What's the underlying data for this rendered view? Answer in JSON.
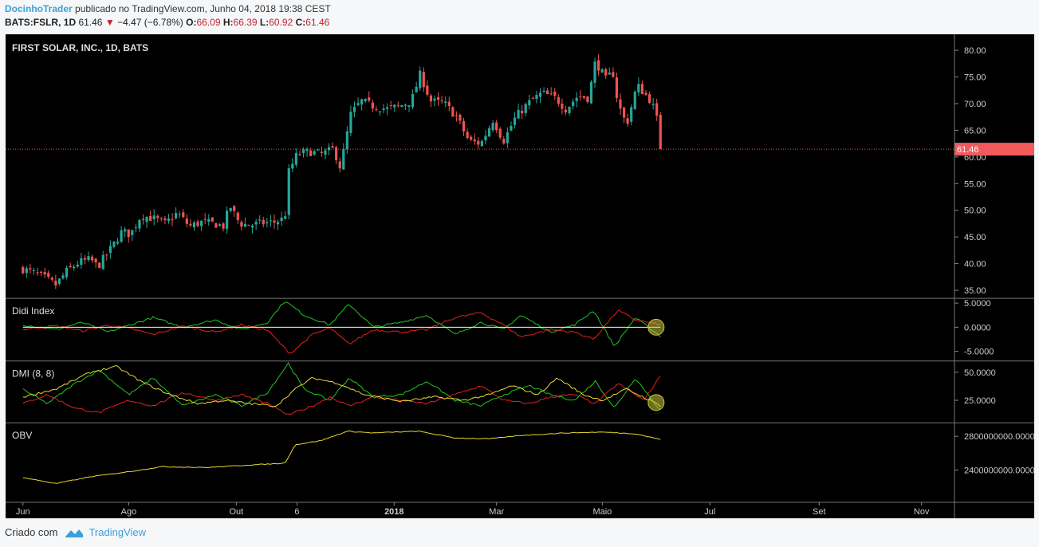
{
  "header": {
    "author": "DocinhoTrader",
    "published_text": "publicado no TradingView.com, Junho 04, 2018 19:38 CEST",
    "symbol": "BATS:FSLR, 1D",
    "last": "61.46",
    "change": "−4.47 (−6.78%)",
    "open_label": "O:",
    "open": "66.09",
    "high_label": "H:",
    "high": "66.39",
    "low_label": "L:",
    "low": "60.92",
    "close_label": "C:",
    "close": "61.46"
  },
  "footer": {
    "created_with": "Criado com",
    "brand": "TradingView"
  },
  "colors": {
    "up": "#26a69a",
    "down": "#ef5350",
    "green_line": "#22c422",
    "red_line": "#e02020",
    "yellow_line": "#e8d830",
    "white_line": "#ffffff",
    "price_tag": "#f2595a"
  },
  "chart_data": [
    {
      "type": "candlestick",
      "title": "FIRST SOLAR, INC., 1D, BATS",
      "ylim": [
        33.5,
        83
      ],
      "y_ticks": [
        "80.00",
        "75.00",
        "70.00",
        "65.00",
        "60.00",
        "55.00",
        "50.00",
        "45.00",
        "40.00",
        "35.00"
      ],
      "last_price_label": "61.46",
      "last_price": 61.46,
      "x_ticks": [
        "Jun",
        "Ago",
        "Out",
        "6",
        "2018",
        "Mar",
        "Maio",
        "Jul",
        "Set",
        "Nov"
      ],
      "x_ticks_bold": "2018",
      "x_anchors": [
        "2017-06-01",
        "2017-08-01",
        "2017-10-02",
        "2017-11-06",
        "2018-01-01",
        "2018-03-01",
        "2018-05-01",
        "2018-07-02",
        "2018-09-03",
        "2018-11-01"
      ],
      "close_points": [
        [
          "2017-06-01",
          39.0
        ],
        [
          "2017-06-07",
          38.3
        ],
        [
          "2017-06-14",
          37.2
        ],
        [
          "2017-06-20",
          36.0
        ],
        [
          "2017-06-26",
          38.5
        ],
        [
          "2017-07-03",
          40.2
        ],
        [
          "2017-07-10",
          40.8
        ],
        [
          "2017-07-14",
          39.4
        ],
        [
          "2017-07-21",
          42.5
        ],
        [
          "2017-07-28",
          46.0
        ],
        [
          "2017-08-02",
          45.5
        ],
        [
          "2017-08-08",
          49.0
        ],
        [
          "2017-08-15",
          48.5
        ],
        [
          "2017-08-22",
          47.5
        ],
        [
          "2017-08-29",
          49.5
        ],
        [
          "2017-09-05",
          47.0
        ],
        [
          "2017-09-12",
          47.8
        ],
        [
          "2017-09-19",
          47.5
        ],
        [
          "2017-09-25",
          47.0
        ],
        [
          "2017-09-28",
          51.0
        ],
        [
          "2017-10-04",
          47.5
        ],
        [
          "2017-10-10",
          47.2
        ],
        [
          "2017-10-17",
          47.6
        ],
        [
          "2017-10-24",
          47.8
        ],
        [
          "2017-10-30",
          48.5
        ],
        [
          "2017-11-01",
          57.0
        ],
        [
          "2017-11-06",
          60.5
        ],
        [
          "2017-11-13",
          61.0
        ],
        [
          "2017-11-20",
          60.5
        ],
        [
          "2017-11-27",
          61.5
        ],
        [
          "2017-12-01",
          58.0
        ],
        [
          "2017-12-07",
          68.0
        ],
        [
          "2017-12-13",
          70.5
        ],
        [
          "2017-12-20",
          69.5
        ],
        [
          "2017-12-28",
          69.0
        ],
        [
          "2018-01-04",
          69.5
        ],
        [
          "2018-01-11",
          70.5
        ],
        [
          "2018-01-16",
          75.5
        ],
        [
          "2018-01-22",
          70.5
        ],
        [
          "2018-01-30",
          70.0
        ],
        [
          "2018-02-06",
          67.5
        ],
        [
          "2018-02-13",
          63.0
        ],
        [
          "2018-02-20",
          62.5
        ],
        [
          "2018-02-27",
          67.0
        ],
        [
          "2018-03-05",
          63.0
        ],
        [
          "2018-03-12",
          67.5
        ],
        [
          "2018-03-19",
          70.0
        ],
        [
          "2018-03-27",
          72.0
        ],
        [
          "2018-04-04",
          71.0
        ],
        [
          "2018-04-10",
          69.0
        ],
        [
          "2018-04-17",
          71.5
        ],
        [
          "2018-04-23",
          71.0
        ],
        [
          "2018-04-27",
          78.0
        ],
        [
          "2018-05-03",
          74.5
        ],
        [
          "2018-05-07",
          76.0
        ],
        [
          "2018-05-10",
          70.0
        ],
        [
          "2018-05-15",
          66.0
        ],
        [
          "2018-05-21",
          73.5
        ],
        [
          "2018-05-29",
          70.5
        ],
        [
          "2018-06-01",
          68.0
        ],
        [
          "2018-06-04",
          61.46
        ]
      ],
      "daily_bar_days": 2.1,
      "panel_top_frac": 0.0,
      "panel_height_frac": 0.564
    },
    {
      "type": "line",
      "title": "Didi Index",
      "ylim": [
        -7,
        6
      ],
      "y_ticks": [
        "5.0000",
        "0.0000",
        "-5.0000"
      ],
      "y_tick_values": [
        5,
        0,
        -5
      ],
      "series": [
        {
          "color": "#22c422",
          "values_at": "see points",
          "points": [
            [
              "2017-06-01",
              0.5
            ],
            [
              "2017-06-20",
              -0.5
            ],
            [
              "2017-07-05",
              1.0
            ],
            [
              "2017-07-20",
              -1.0
            ],
            [
              "2017-08-02",
              0.5
            ],
            [
              "2017-08-15",
              2.0
            ],
            [
              "2017-09-01",
              0.0
            ],
            [
              "2017-09-20",
              1.5
            ],
            [
              "2017-10-05",
              -0.5
            ],
            [
              "2017-10-20",
              1.0
            ],
            [
              "2017-10-30",
              5.5
            ],
            [
              "2017-11-10",
              2.5
            ],
            [
              "2017-11-25",
              0.5
            ],
            [
              "2017-12-06",
              4.8
            ],
            [
              "2017-12-20",
              0.0
            ],
            [
              "2018-01-05",
              1.0
            ],
            [
              "2018-01-20",
              2.5
            ],
            [
              "2018-02-05",
              -1.5
            ],
            [
              "2018-02-20",
              1.0
            ],
            [
              "2018-03-05",
              -0.5
            ],
            [
              "2018-03-15",
              2.5
            ],
            [
              "2018-04-01",
              -1.0
            ],
            [
              "2018-04-15",
              0.5
            ],
            [
              "2018-04-26",
              3.5
            ],
            [
              "2018-05-08",
              -4.0
            ],
            [
              "2018-05-20",
              2.0
            ],
            [
              "2018-06-04",
              -2.0
            ]
          ]
        },
        {
          "color": "#e02020",
          "points": [
            [
              "2017-06-01",
              -0.5
            ],
            [
              "2017-06-20",
              0.3
            ],
            [
              "2017-07-05",
              -0.8
            ],
            [
              "2017-07-20",
              0.4
            ],
            [
              "2017-08-02",
              -0.3
            ],
            [
              "2017-08-15",
              -1.5
            ],
            [
              "2017-09-01",
              0.2
            ],
            [
              "2017-09-20",
              -1.0
            ],
            [
              "2017-10-05",
              0.5
            ],
            [
              "2017-10-20",
              -0.6
            ],
            [
              "2017-11-02",
              -5.5
            ],
            [
              "2017-11-15",
              -1.5
            ],
            [
              "2017-11-25",
              -0.2
            ],
            [
              "2017-12-06",
              -3.5
            ],
            [
              "2017-12-20",
              -0.5
            ],
            [
              "2018-01-05",
              -1.0
            ],
            [
              "2018-01-20",
              -0.5
            ],
            [
              "2018-02-05",
              2.0
            ],
            [
              "2018-02-20",
              3.0
            ],
            [
              "2018-03-05",
              0.5
            ],
            [
              "2018-03-15",
              -2.0
            ],
            [
              "2018-04-01",
              -0.5
            ],
            [
              "2018-04-15",
              -1.0
            ],
            [
              "2018-04-26",
              -2.5
            ],
            [
              "2018-05-10",
              3.5
            ],
            [
              "2018-05-20",
              1.5
            ],
            [
              "2018-06-04",
              0.5
            ]
          ]
        },
        {
          "color": "#ffffff",
          "points": [
            [
              "2017-06-01",
              0.0
            ],
            [
              "2018-06-04",
              0.0
            ]
          ]
        }
      ],
      "panel_top_frac": 0.564,
      "panel_height_frac": 0.134
    },
    {
      "type": "line",
      "title": "DMI (8, 8)",
      "ylim": [
        5,
        60
      ],
      "y_ticks": [
        "50.0000",
        "25.0000"
      ],
      "y_tick_values": [
        50,
        25
      ],
      "series": [
        {
          "color": "#22c422",
          "points": [
            [
              "2017-06-01",
              35
            ],
            [
              "2017-06-15",
              22
            ],
            [
              "2017-07-01",
              40
            ],
            [
              "2017-07-15",
              52
            ],
            [
              "2017-08-01",
              30
            ],
            [
              "2017-08-15",
              45
            ],
            [
              "2017-09-01",
              20
            ],
            [
              "2017-09-20",
              30
            ],
            [
              "2017-10-05",
              20
            ],
            [
              "2017-10-20",
              32
            ],
            [
              "2017-11-01",
              58
            ],
            [
              "2017-11-10",
              35
            ],
            [
              "2017-11-25",
              25
            ],
            [
              "2017-12-06",
              45
            ],
            [
              "2017-12-20",
              28
            ],
            [
              "2018-01-05",
              30
            ],
            [
              "2018-01-20",
              42
            ],
            [
              "2018-02-05",
              25
            ],
            [
              "2018-02-20",
              20
            ],
            [
              "2018-03-05",
              30
            ],
            [
              "2018-03-20",
              38
            ],
            [
              "2018-04-01",
              30
            ],
            [
              "2018-04-15",
              25
            ],
            [
              "2018-04-27",
              42
            ],
            [
              "2018-05-08",
              18
            ],
            [
              "2018-05-20",
              45
            ],
            [
              "2018-06-04",
              15
            ]
          ]
        },
        {
          "color": "#e02020",
          "points": [
            [
              "2017-06-01",
              22
            ],
            [
              "2017-06-15",
              30
            ],
            [
              "2017-07-01",
              18
            ],
            [
              "2017-07-15",
              14
            ],
            [
              "2017-08-01",
              25
            ],
            [
              "2017-08-15",
              20
            ],
            [
              "2017-09-01",
              32
            ],
            [
              "2017-09-20",
              25
            ],
            [
              "2017-10-05",
              30
            ],
            [
              "2017-10-20",
              22
            ],
            [
              "2017-11-01",
              12
            ],
            [
              "2017-11-15",
              20
            ],
            [
              "2017-11-25",
              28
            ],
            [
              "2017-12-06",
              20
            ],
            [
              "2017-12-20",
              28
            ],
            [
              "2018-01-05",
              25
            ],
            [
              "2018-01-20",
              22
            ],
            [
              "2018-02-05",
              30
            ],
            [
              "2018-02-20",
              38
            ],
            [
              "2018-03-05",
              25
            ],
            [
              "2018-03-20",
              22
            ],
            [
              "2018-04-01",
              28
            ],
            [
              "2018-04-15",
              30
            ],
            [
              "2018-04-27",
              22
            ],
            [
              "2018-05-10",
              40
            ],
            [
              "2018-05-25",
              25
            ],
            [
              "2018-06-04",
              48
            ]
          ]
        },
        {
          "color": "#e8d830",
          "points": [
            [
              "2017-06-01",
              28
            ],
            [
              "2017-06-20",
              35
            ],
            [
              "2017-07-10",
              50
            ],
            [
              "2017-07-25",
              55
            ],
            [
              "2017-08-10",
              40
            ],
            [
              "2017-08-25",
              30
            ],
            [
              "2017-09-10",
              22
            ],
            [
              "2017-09-25",
              25
            ],
            [
              "2017-10-10",
              22
            ],
            [
              "2017-10-25",
              20
            ],
            [
              "2017-11-05",
              35
            ],
            [
              "2017-11-15",
              45
            ],
            [
              "2017-11-30",
              40
            ],
            [
              "2017-12-15",
              30
            ],
            [
              "2018-01-05",
              24
            ],
            [
              "2018-01-25",
              28
            ],
            [
              "2018-02-10",
              25
            ],
            [
              "2018-02-25",
              30
            ],
            [
              "2018-03-10",
              38
            ],
            [
              "2018-03-25",
              30
            ],
            [
              "2018-04-05",
              45
            ],
            [
              "2018-04-20",
              30
            ],
            [
              "2018-05-01",
              25
            ],
            [
              "2018-05-15",
              35
            ],
            [
              "2018-06-04",
              20
            ]
          ]
        }
      ],
      "panel_top_frac": 0.698,
      "panel_height_frac": 0.132
    },
    {
      "type": "line",
      "title": "OBV",
      "ylim": [
        2200000000,
        2960000000
      ],
      "y_ticks": [
        "2800000000.0000",
        "2400000000.0000"
      ],
      "y_tick_values": [
        2800000000,
        2400000000
      ],
      "series": [
        {
          "color": "#e8d830",
          "points": [
            [
              "2017-06-01",
              2310000000
            ],
            [
              "2017-06-20",
              2240000000
            ],
            [
              "2017-07-10",
              2320000000
            ],
            [
              "2017-08-01",
              2380000000
            ],
            [
              "2017-08-20",
              2440000000
            ],
            [
              "2017-09-15",
              2430000000
            ],
            [
              "2017-10-10",
              2460000000
            ],
            [
              "2017-10-30",
              2480000000
            ],
            [
              "2017-11-05",
              2700000000
            ],
            [
              "2017-11-20",
              2750000000
            ],
            [
              "2017-12-05",
              2860000000
            ],
            [
              "2017-12-20",
              2840000000
            ],
            [
              "2018-01-15",
              2860000000
            ],
            [
              "2018-02-05",
              2780000000
            ],
            [
              "2018-02-25",
              2770000000
            ],
            [
              "2018-03-15",
              2810000000
            ],
            [
              "2018-04-10",
              2840000000
            ],
            [
              "2018-05-01",
              2850000000
            ],
            [
              "2018-05-20",
              2830000000
            ],
            [
              "2018-06-04",
              2760000000
            ]
          ]
        }
      ],
      "panel_top_frac": 0.83,
      "panel_height_frac": 0.137
    }
  ]
}
